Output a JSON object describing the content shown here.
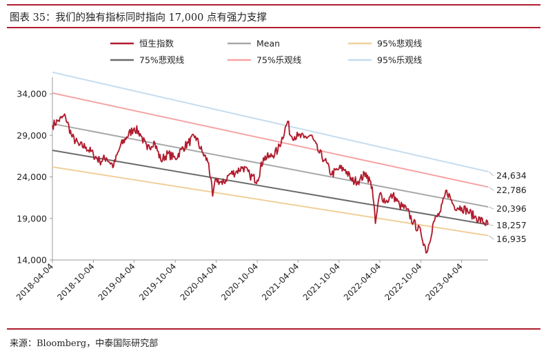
{
  "header": {
    "title": "图表 35：我们的独有指标同时指向 17,000 点有强力支撑"
  },
  "footer": {
    "source": "来源：Bloomberg，中泰国际研究部"
  },
  "colors": {
    "accent_rule": "#b01c2e",
    "index": "#b01c2e",
    "mean": "#a8a8a8",
    "p95_bear": "#f0cf9a",
    "p75_bear": "#6b6b6b",
    "p75_bull": "#f5a3a3",
    "p95_bull": "#c5dcef"
  },
  "chart_data": {
    "type": "line",
    "title": "",
    "xlabel": "",
    "ylabel": "",
    "ylim": [
      14000,
      36000
    ],
    "yticks": [
      14000,
      19000,
      24000,
      29000,
      34000
    ],
    "ytick_labels": [
      "14,000",
      "19,000",
      "24,000",
      "29,000",
      "34,000"
    ],
    "x_start": "2018-04-04",
    "x_end": "2023-07-31",
    "xticks": [
      "2018-04-04",
      "2018-10-04",
      "2019-04-04",
      "2019-10-04",
      "2020-04-04",
      "2020-10-04",
      "2021-04-04",
      "2021-10-04",
      "2022-04-04",
      "2022-10-04",
      "2023-04-04"
    ],
    "legend": [
      {
        "key": "index",
        "label": "恒生指数"
      },
      {
        "key": "mean",
        "label": "Mean"
      },
      {
        "key": "p95_bear",
        "label": "95%悲观线"
      },
      {
        "key": "p75_bear",
        "label": "75%悲观线"
      },
      {
        "key": "p75_bull",
        "label": "75%乐观线"
      },
      {
        "key": "p95_bull",
        "label": "95%乐观线"
      }
    ],
    "series": [
      {
        "key": "p95_bull",
        "name": "95%乐观线",
        "start": 36600,
        "end": 24634,
        "end_label": "24,634"
      },
      {
        "key": "p75_bull",
        "name": "75%乐观线",
        "start": 34100,
        "end": 22786,
        "end_label": "22,786"
      },
      {
        "key": "mean",
        "name": "Mean",
        "start": 30400,
        "end": 20396,
        "end_label": "20,396"
      },
      {
        "key": "p75_bear",
        "name": "75%悲观线",
        "start": 27200,
        "end": 18257,
        "end_label": "18,257"
      },
      {
        "key": "p95_bear",
        "name": "95%悲观线",
        "start": 25200,
        "end": 16935,
        "end_label": "16,935"
      },
      {
        "key": "index",
        "name": "恒生指数",
        "x": [
          "2018-04-04",
          "2018-05-01",
          "2018-06-01",
          "2018-07-01",
          "2018-08-01",
          "2018-09-01",
          "2018-10-04",
          "2018-11-01",
          "2018-12-01",
          "2019-01-02",
          "2019-02-01",
          "2019-03-01",
          "2019-04-04",
          "2019-05-01",
          "2019-06-01",
          "2019-07-01",
          "2019-08-01",
          "2019-09-01",
          "2019-10-04",
          "2019-11-01",
          "2019-12-01",
          "2020-01-02",
          "2020-02-01",
          "2020-03-01",
          "2020-03-19",
          "2020-04-04",
          "2020-05-01",
          "2020-06-01",
          "2020-07-01",
          "2020-08-01",
          "2020-09-01",
          "2020-10-04",
          "2020-11-01",
          "2020-12-01",
          "2021-01-04",
          "2021-02-17",
          "2021-03-01",
          "2021-04-04",
          "2021-05-01",
          "2021-06-01",
          "2021-07-01",
          "2021-08-01",
          "2021-09-01",
          "2021-10-04",
          "2021-11-01",
          "2021-12-01",
          "2022-01-04",
          "2022-02-01",
          "2022-03-01",
          "2022-03-15",
          "2022-04-04",
          "2022-05-01",
          "2022-06-01",
          "2022-07-01",
          "2022-08-01",
          "2022-09-01",
          "2022-10-04",
          "2022-10-31",
          "2022-11-30",
          "2022-12-31",
          "2023-01-27",
          "2023-03-01",
          "2023-04-04",
          "2023-05-01",
          "2023-06-01",
          "2023-07-31"
        ],
        "values": [
          30200,
          30800,
          31300,
          28800,
          27800,
          27600,
          26700,
          25900,
          26300,
          25300,
          27700,
          28800,
          29900,
          29200,
          27300,
          28300,
          26000,
          26800,
          26200,
          27300,
          28100,
          28900,
          27000,
          25700,
          21700,
          23800,
          23100,
          24300,
          24600,
          25200,
          24200,
          23600,
          26300,
          26400,
          27200,
          30700,
          29000,
          28900,
          28700,
          29000,
          27200,
          26000,
          24300,
          25000,
          24900,
          23500,
          23600,
          24500,
          22800,
          18400,
          22000,
          21000,
          21800,
          20600,
          20100,
          18500,
          17300,
          14900,
          18600,
          19800,
          22400,
          20500,
          20300,
          19900,
          19200,
          18257
        ]
      }
    ]
  }
}
